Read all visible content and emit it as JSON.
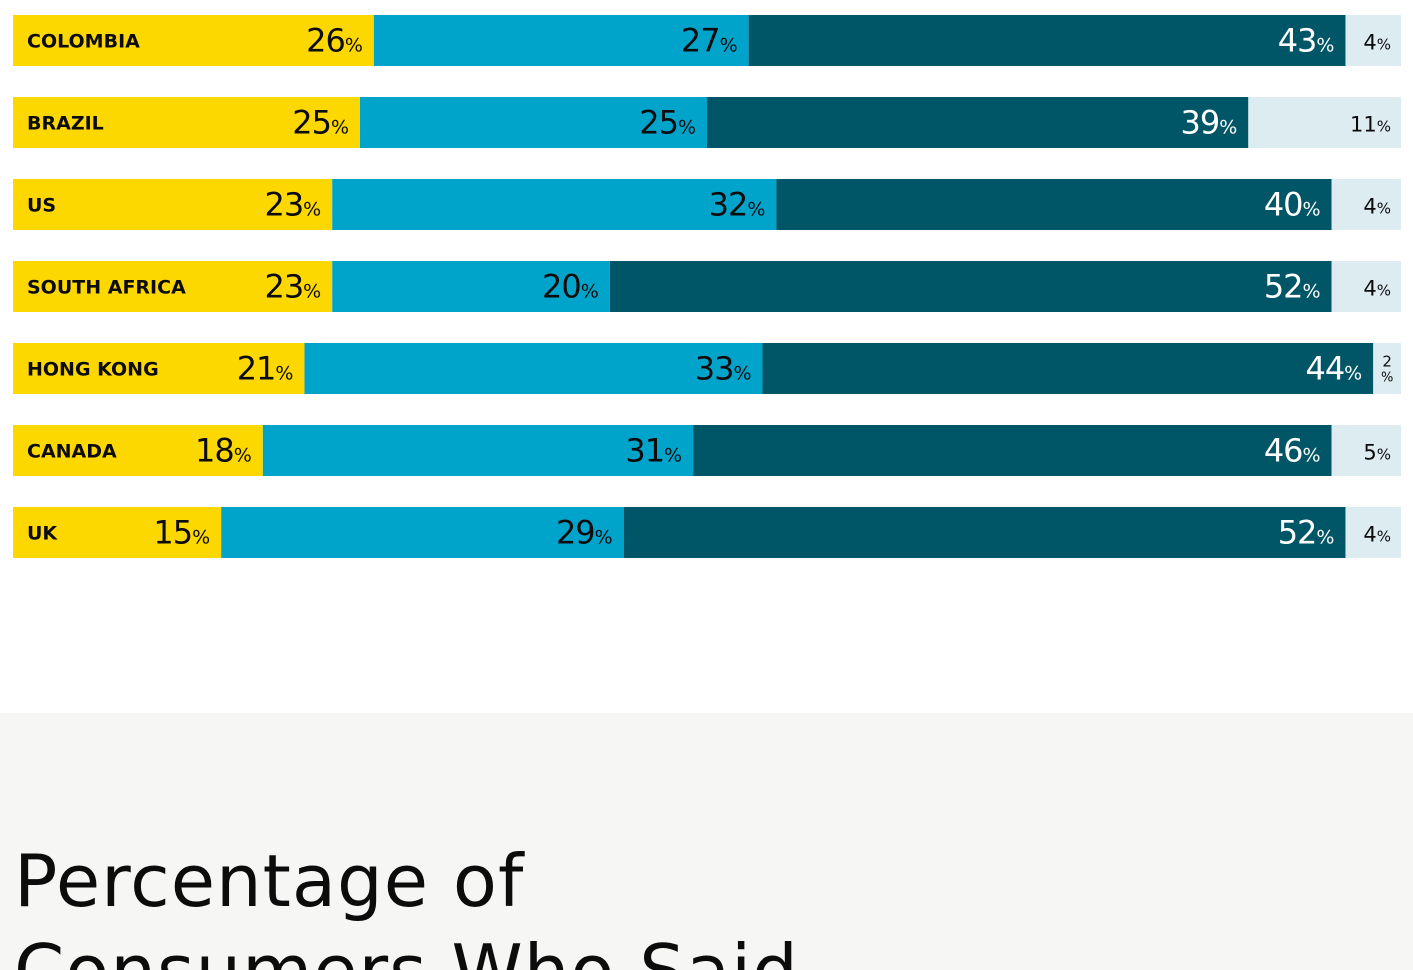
{
  "chart_data": {
    "type": "bar",
    "orientation": "horizontal",
    "stacked": true,
    "categories": [
      "COLOMBIA",
      "BRAZIL",
      "US",
      "SOUTH AFRICA",
      "HONG KONG",
      "CANADA",
      "UK"
    ],
    "series": [
      {
        "color": "#fdd800",
        "values": [
          26,
          25,
          23,
          23,
          21,
          18,
          15
        ],
        "display": [
          "26",
          "25",
          "23",
          "23",
          "21",
          "18",
          "15"
        ]
      },
      {
        "color": "#00a4cb",
        "values": [
          27,
          25,
          32,
          20,
          33,
          31,
          29
        ],
        "display": [
          "27",
          "25",
          "32",
          "20",
          "33",
          "31",
          "29"
        ]
      },
      {
        "color": "#005566",
        "values": [
          43,
          39,
          40,
          52,
          44,
          46,
          52
        ],
        "display": [
          "43",
          "39",
          "40",
          "52",
          "44",
          "46",
          "52"
        ]
      },
      {
        "color": "#dcecf1",
        "values": [
          4,
          11,
          4,
          4,
          2,
          5,
          4
        ],
        "display": [
          "4",
          "11",
          "4",
          "4",
          "2",
          "5",
          "4"
        ]
      }
    ],
    "unit": "%",
    "xlim": [
      0,
      100
    ],
    "legend": "none",
    "grid": false
  },
  "heading": {
    "text": "Percentage of Consumers Who Said"
  },
  "colors": {
    "dark_text": "#0c0c0c",
    "light_text": "#ffffff",
    "section_background": "#f6f7f5"
  }
}
